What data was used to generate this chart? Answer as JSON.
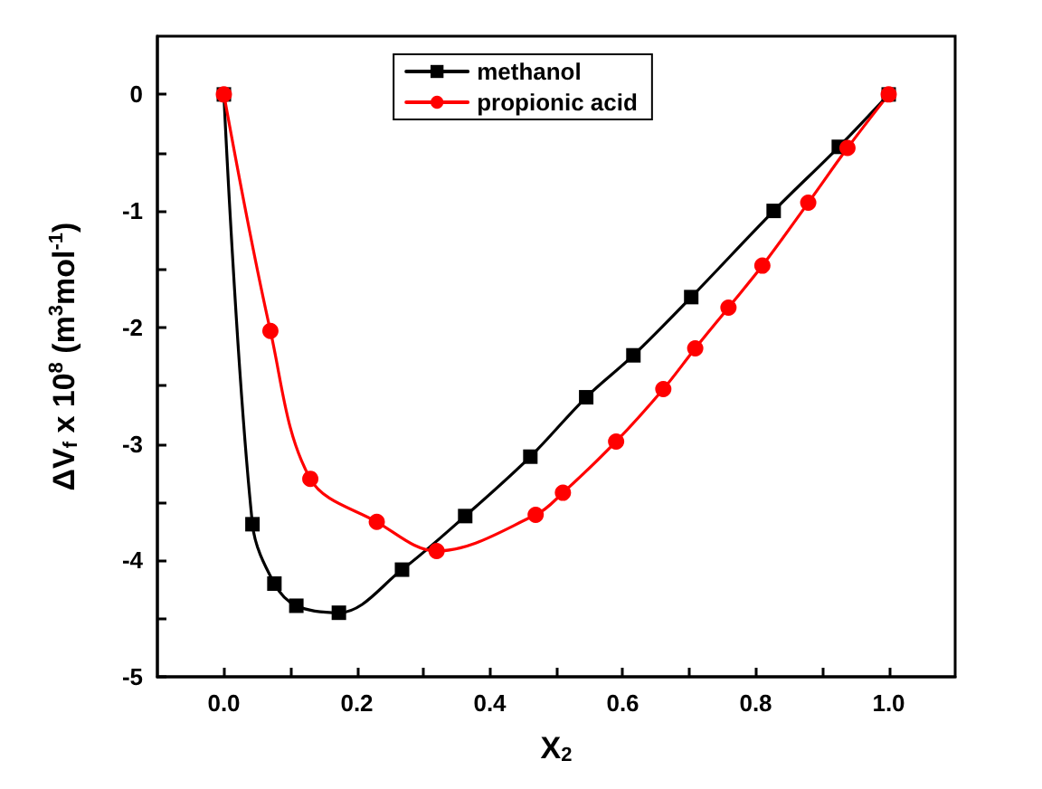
{
  "chart_data": {
    "type": "line",
    "xlabel": "X$_{2}$",
    "ylabel": "ΔV$_{f}$ x 10$^{8}$ (m$^{3}$mol$^{-1}$)",
    "xlim": [
      -0.1,
      1.1
    ],
    "ylim": [
      -5,
      0.5
    ],
    "xticks": [
      {
        "value": 0,
        "label": "0.0"
      },
      {
        "value": 0.1,
        "label": null
      },
      {
        "value": 0.2,
        "label": "0.2"
      },
      {
        "value": 0.3,
        "label": null
      },
      {
        "value": 0.4,
        "label": "0.4"
      },
      {
        "value": 0.5,
        "label": null
      },
      {
        "value": 0.6,
        "label": "0.6"
      },
      {
        "value": 0.7,
        "label": null
      },
      {
        "value": 0.8,
        "label": "0.8"
      },
      {
        "value": 0.9,
        "label": null
      },
      {
        "value": 1,
        "label": "1.0"
      }
    ],
    "yticks": [
      -5,
      {
        "value": -4.5,
        "label": null
      },
      -4,
      {
        "value": -3.5,
        "label": null
      },
      -3,
      {
        "value": -2.5,
        "label": null
      },
      -2,
      {
        "value": -1.5,
        "label": null
      },
      -1,
      {
        "value": -0.5,
        "label": null
      },
      0
    ],
    "grid": false,
    "legend": "top",
    "line_style": "solid",
    "series": [
      {
        "name": "methanol",
        "color": "#000000",
        "marker": "square",
        "x": [
          0,
          0.043,
          0.076,
          0.109,
          0.173,
          0.268,
          0.363,
          0.461,
          0.545,
          0.616,
          0.703,
          0.827,
          0.925,
          1
        ],
        "values": [
          0,
          -3.69,
          -4.2,
          -4.39,
          -4.45,
          -4.08,
          -3.62,
          -3.11,
          -2.6,
          -2.24,
          -1.74,
          -1.0,
          -0.45,
          0
        ]
      },
      {
        "name": "propionic acid",
        "color": "#ff0000",
        "marker": "circle",
        "x": [
          0,
          0.07,
          0.13,
          0.23,
          0.32,
          0.469,
          0.51,
          0.59,
          0.661,
          0.709,
          0.759,
          0.81,
          0.879,
          0.938,
          1
        ],
        "values": [
          0,
          -2.03,
          -3.3,
          -3.67,
          -3.92,
          -3.61,
          -3.42,
          -2.98,
          -2.53,
          -2.18,
          -1.83,
          -1.47,
          -0.93,
          -0.46,
          0
        ]
      }
    ]
  }
}
